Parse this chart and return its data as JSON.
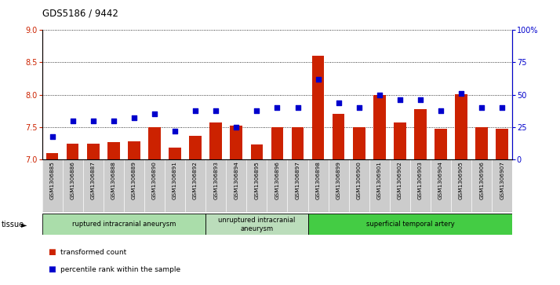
{
  "title": "GDS5186 / 9442",
  "samples": [
    "GSM1306885",
    "GSM1306886",
    "GSM1306887",
    "GSM1306888",
    "GSM1306889",
    "GSM1306890",
    "GSM1306891",
    "GSM1306892",
    "GSM1306893",
    "GSM1306894",
    "GSM1306895",
    "GSM1306896",
    "GSM1306897",
    "GSM1306898",
    "GSM1306899",
    "GSM1306900",
    "GSM1306901",
    "GSM1306902",
    "GSM1306903",
    "GSM1306904",
    "GSM1306905",
    "GSM1306906",
    "GSM1306907"
  ],
  "bar_values": [
    7.1,
    7.25,
    7.25,
    7.27,
    7.28,
    7.5,
    7.18,
    7.37,
    7.57,
    7.52,
    7.23,
    7.5,
    7.5,
    8.6,
    7.7,
    7.5,
    8.0,
    7.57,
    7.78,
    7.47,
    8.01,
    7.5,
    7.47
  ],
  "blue_values": [
    18,
    30,
    30,
    30,
    32,
    35,
    22,
    38,
    38,
    25,
    38,
    40,
    40,
    62,
    44,
    40,
    50,
    46,
    46,
    38,
    51,
    40,
    40
  ],
  "ylim_left": [
    7.0,
    9.0
  ],
  "ylim_right": [
    0,
    100
  ],
  "yticks_left": [
    7.0,
    7.5,
    8.0,
    8.5,
    9.0
  ],
  "yticks_right": [
    0,
    25,
    50,
    75,
    100
  ],
  "ytick_labels_right": [
    "0",
    "25",
    "50",
    "75",
    "100%"
  ],
  "bar_color": "#cc2200",
  "blue_color": "#0000cc",
  "plot_bg_color": "#ffffff",
  "xtick_bg_color": "#cccccc",
  "tissue_groups": [
    {
      "label": "ruptured intracranial aneurysm",
      "start": 0,
      "end": 8,
      "color": "#aaddaa"
    },
    {
      "label": "unruptured intracranial\naneurysm",
      "start": 8,
      "end": 13,
      "color": "#bbddbb"
    },
    {
      "label": "superficial temporal artery",
      "start": 13,
      "end": 23,
      "color": "#44cc44"
    }
  ],
  "tissue_label": "tissue",
  "legend_bar_label": "transformed count",
  "legend_blue_label": "percentile rank within the sample",
  "bar_color_legend": "#cc2200",
  "blue_color_legend": "#0000cc"
}
